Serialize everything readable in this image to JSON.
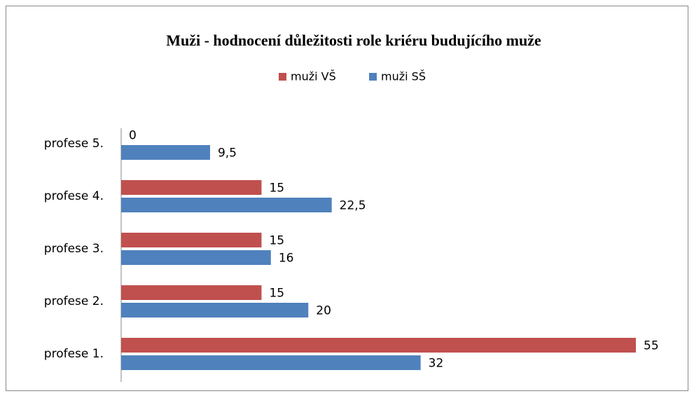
{
  "chart_data": {
    "type": "bar",
    "orientation": "horizontal",
    "title": "Muži - hodnocení důležitosti role kriéru budujícího muže",
    "categories": [
      "profese 1.",
      "profese 2.",
      "profese 3.",
      "profese 4.",
      "profese 5."
    ],
    "series": [
      {
        "name": "muži VŠ",
        "color": "#c0504d",
        "values": [
          55,
          15,
          15,
          15,
          0
        ],
        "value_labels": [
          "55",
          "15",
          "15",
          "15",
          "0"
        ]
      },
      {
        "name": "muži SŠ",
        "color": "#4f81bd",
        "values": [
          32,
          20,
          16,
          22.5,
          9.5
        ],
        "value_labels": [
          "32",
          "20",
          "16",
          "22,5",
          "9,5"
        ]
      }
    ],
    "xlim": [
      0,
      55
    ],
    "legend": "top"
  }
}
